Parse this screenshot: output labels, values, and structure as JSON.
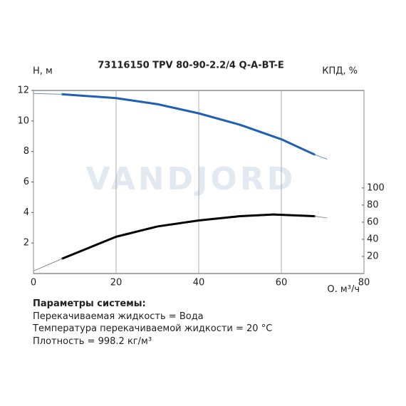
{
  "chart_data": {
    "type": "line",
    "title": "73116150 TPV 80-90-2.2/4 Q-A-BT-E",
    "watermark": "VANDJORD",
    "y_label": "H, м",
    "y2_label": "КПД, %",
    "x_label": "Q, м³/ч",
    "xlim": [
      0,
      80
    ],
    "xticks": [
      0,
      20,
      40,
      60,
      80
    ],
    "ylim": [
      0,
      12
    ],
    "yticks": [
      2,
      4,
      6,
      8,
      10,
      12
    ],
    "y2lim": [
      0,
      214
    ],
    "y2ticks": [
      20,
      40,
      60,
      80,
      100
    ],
    "grid": "x",
    "series": [
      {
        "color": "#1f5fb4",
        "width": 3,
        "x": [
          7,
          20,
          30,
          40,
          50,
          60,
          68
        ],
        "values": [
          11.75,
          11.5,
          11.1,
          10.5,
          9.75,
          8.8,
          7.8
        ]
      },
      {
        "color": "#6f8fc8",
        "width": 1,
        "x": [
          0,
          7,
          68,
          68,
          71
        ],
        "values": [
          11.8,
          11.75,
          null,
          7.8,
          7.5
        ]
      },
      {
        "color": "#000000",
        "width": 3,
        "axis": "y2",
        "x": [
          7,
          20,
          30,
          40,
          50,
          58,
          68
        ],
        "values": [
          17.5,
          43,
          55,
          62,
          67,
          69,
          67
        ]
      },
      {
        "color": "#888888",
        "width": 1,
        "axis": "y2",
        "x": [
          0,
          7,
          68,
          68,
          71
        ],
        "values": [
          3,
          17.5,
          null,
          67,
          65
        ]
      }
    ]
  },
  "notes": {
    "heading": "Параметры системы:",
    "lines": [
      "Перекачиваемая жидкость = Вода",
      "Температура перекачиваемой жидкости = 20 °C",
      "Плотность = 998.2 кг/м³"
    ]
  }
}
